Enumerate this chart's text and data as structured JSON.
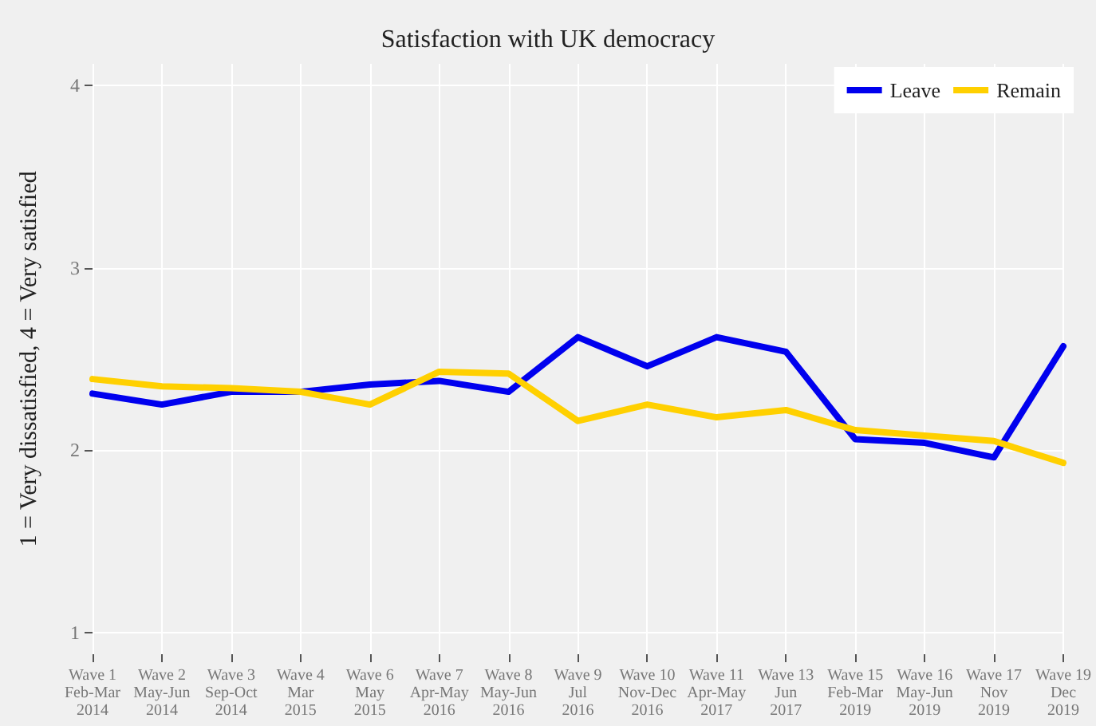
{
  "chart_data": {
    "type": "line",
    "title": "Satisfaction with UK democracy",
    "ylabel": "1 = Very dissatisfied, 4 = Very satisfied",
    "categories": [
      "Wave 1\nFeb-Mar\n2014",
      "Wave 2\nMay-Jun\n2014",
      "Wave 3\nSep-Oct\n2014",
      "Wave 4\nMar\n2015",
      "Wave 6\nMay\n2015",
      "Wave 7\nApr-May\n2016",
      "Wave 8\nMay-Jun\n2016",
      "Wave 9\nJul\n2016",
      "Wave 10\nNov-Dec\n2016",
      "Wave 11\nApr-May\n2017",
      "Wave 13\nJun\n2017",
      "Wave 15\nFeb-Mar\n2019",
      "Wave 16\nMay-Jun\n2019",
      "Wave 17\nNov\n2019",
      "Wave 19\nDec\n2019"
    ],
    "series": [
      {
        "name": "Leave",
        "color": "#0000ee",
        "values": [
          2.31,
          2.25,
          2.32,
          2.32,
          2.36,
          2.38,
          2.32,
          2.62,
          2.46,
          2.62,
          2.54,
          2.06,
          2.04,
          1.96,
          2.57
        ]
      },
      {
        "name": "Remain",
        "color": "#ffd000",
        "values": [
          2.39,
          2.35,
          2.34,
          2.32,
          2.25,
          2.43,
          2.42,
          2.16,
          2.25,
          2.18,
          2.22,
          2.11,
          2.08,
          2.05,
          1.93
        ]
      }
    ],
    "ylim": [
      0.88,
      4.12
    ],
    "yticks": [
      1,
      2,
      3,
      4
    ],
    "grid": true,
    "legend": "top right",
    "marker": "none",
    "line_style": "solid"
  }
}
